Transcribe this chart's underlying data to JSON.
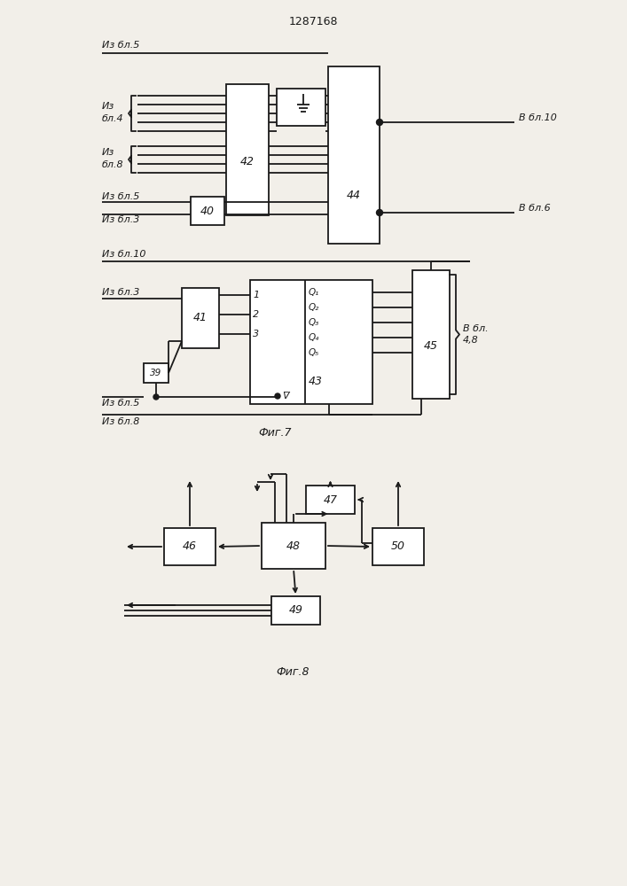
{
  "title": "1287168",
  "fig7_label": "Фиг.7",
  "fig8_label": "Фиг.8",
  "bg_color": "#f2efe9",
  "line_color": "#1a1a1a",
  "text_color": "#1a1a1a"
}
